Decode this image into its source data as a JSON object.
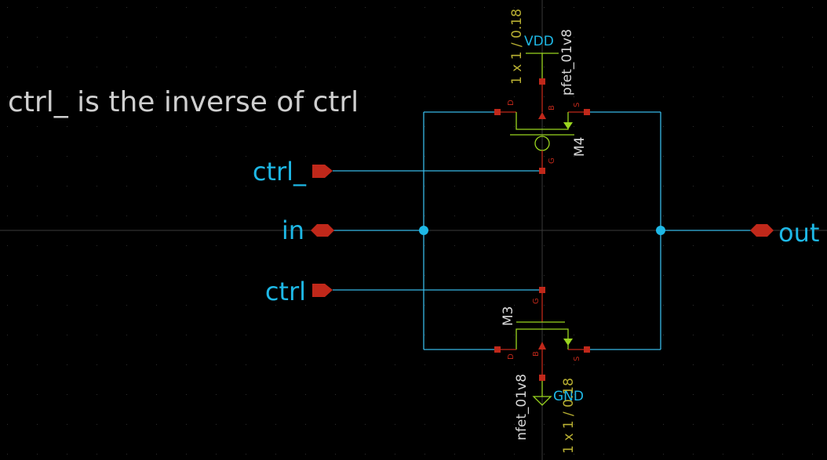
{
  "schematic": {
    "note": "ctrl_ is the inverse of ctrl",
    "ports": {
      "ctrl_n": "ctrl_",
      "in": "in",
      "ctrl": "ctrl",
      "out": "out"
    },
    "nets": {
      "vdd": "VDD",
      "gnd": "GND"
    },
    "pmos": {
      "instance": "M4",
      "model": "pfet_01v8",
      "size": "1 x 1 / 0.18",
      "pins": {
        "d": "D",
        "b": "B",
        "s": "S",
        "g": "G"
      }
    },
    "nmos": {
      "instance": "M3",
      "model": "nfet_01v8",
      "size": "1 x 1 / 0.18",
      "pins": {
        "d": "D",
        "b": "B",
        "s": "S",
        "g": "G"
      }
    },
    "colors": {
      "background": "#000000",
      "wire": "#37b8e6",
      "symbol": "#9ad51f",
      "pin": "#c0281a",
      "attribute": "#b9b032",
      "text": "#cfcfcf"
    }
  }
}
